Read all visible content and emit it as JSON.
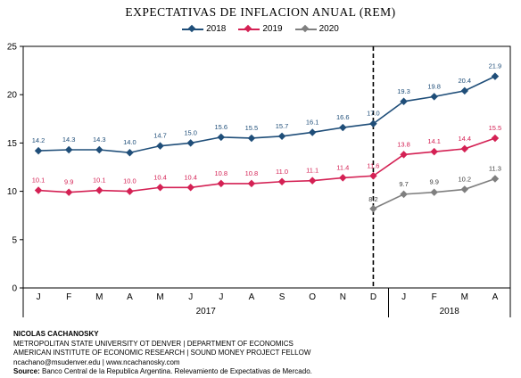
{
  "chart_data": {
    "type": "line",
    "title": "EXPECTATIVAS DE INFLACION ANUAL (REM)",
    "categories": [
      "J",
      "F",
      "M",
      "A",
      "M",
      "J",
      "J",
      "A",
      "S",
      "O",
      "N",
      "D",
      "J",
      "F",
      "M",
      "A"
    ],
    "year_groups": [
      {
        "label": "2017",
        "start": 0,
        "end": 11
      },
      {
        "label": "2018",
        "start": 12,
        "end": 15
      }
    ],
    "series": [
      {
        "name": "2018",
        "color": "#1f4e79",
        "values": [
          14.2,
          14.3,
          14.3,
          14.0,
          14.7,
          15.0,
          15.6,
          15.5,
          15.7,
          16.1,
          16.6,
          17.0,
          19.3,
          19.8,
          20.4,
          21.9
        ],
        "labels": [
          "14.2",
          "14.3",
          "14.3",
          "14.0",
          "14.7",
          "15.0",
          "15.6",
          "15.5",
          "15.7",
          "16.1",
          "16.6",
          "17.0",
          "19.3",
          "19.8",
          "20.4",
          "21.9"
        ]
      },
      {
        "name": "2019",
        "color": "#d42154",
        "values": [
          10.1,
          9.9,
          10.1,
          10.0,
          10.4,
          10.4,
          10.8,
          10.8,
          11.0,
          11.1,
          11.4,
          11.6,
          13.8,
          14.1,
          14.4,
          15.5
        ],
        "labels": [
          "10.1",
          "9.9",
          "10.1",
          "10.0",
          "10.4",
          "10.4",
          "10.8",
          "10.8",
          "11.0",
          "11.1",
          "11.4",
          "11.6",
          "13.8",
          "14.1",
          "14.4",
          "15.5"
        ]
      },
      {
        "name": "2020",
        "color": "#7f7f7f",
        "values": [
          null,
          null,
          null,
          null,
          null,
          null,
          null,
          null,
          null,
          null,
          null,
          8.2,
          9.7,
          9.9,
          10.2,
          11.3
        ],
        "labels": [
          null,
          null,
          null,
          null,
          null,
          null,
          null,
          null,
          null,
          null,
          null,
          "8.2",
          "9.7",
          "9.9",
          "10.2",
          "11.3"
        ]
      }
    ],
    "ylim": [
      0,
      25
    ],
    "yticks": [
      "0",
      "5",
      "10",
      "15",
      "20",
      "25"
    ],
    "vertical_marker_after_category": 11,
    "legend_position": "top-center",
    "grid": false
  },
  "footer": {
    "author": "NICOLAS CACHANOSKY",
    "line1": "METROPOLITAN STATE UNIVERSITY OT DENVER | DEPARTMENT OF ECONOMICS",
    "line2": "AMERICAN INSTITUTE OF ECONOMIC RESEARCH | SOUND MONEY PROJECT FELLOW",
    "line3": "ncachano@msudenver.edu  |  www.ncachanosky.com",
    "source_label": "Source:",
    "source_text": " Banco Central de la Republica Argentina. Relevamiento de Expectativas de Mercado."
  }
}
